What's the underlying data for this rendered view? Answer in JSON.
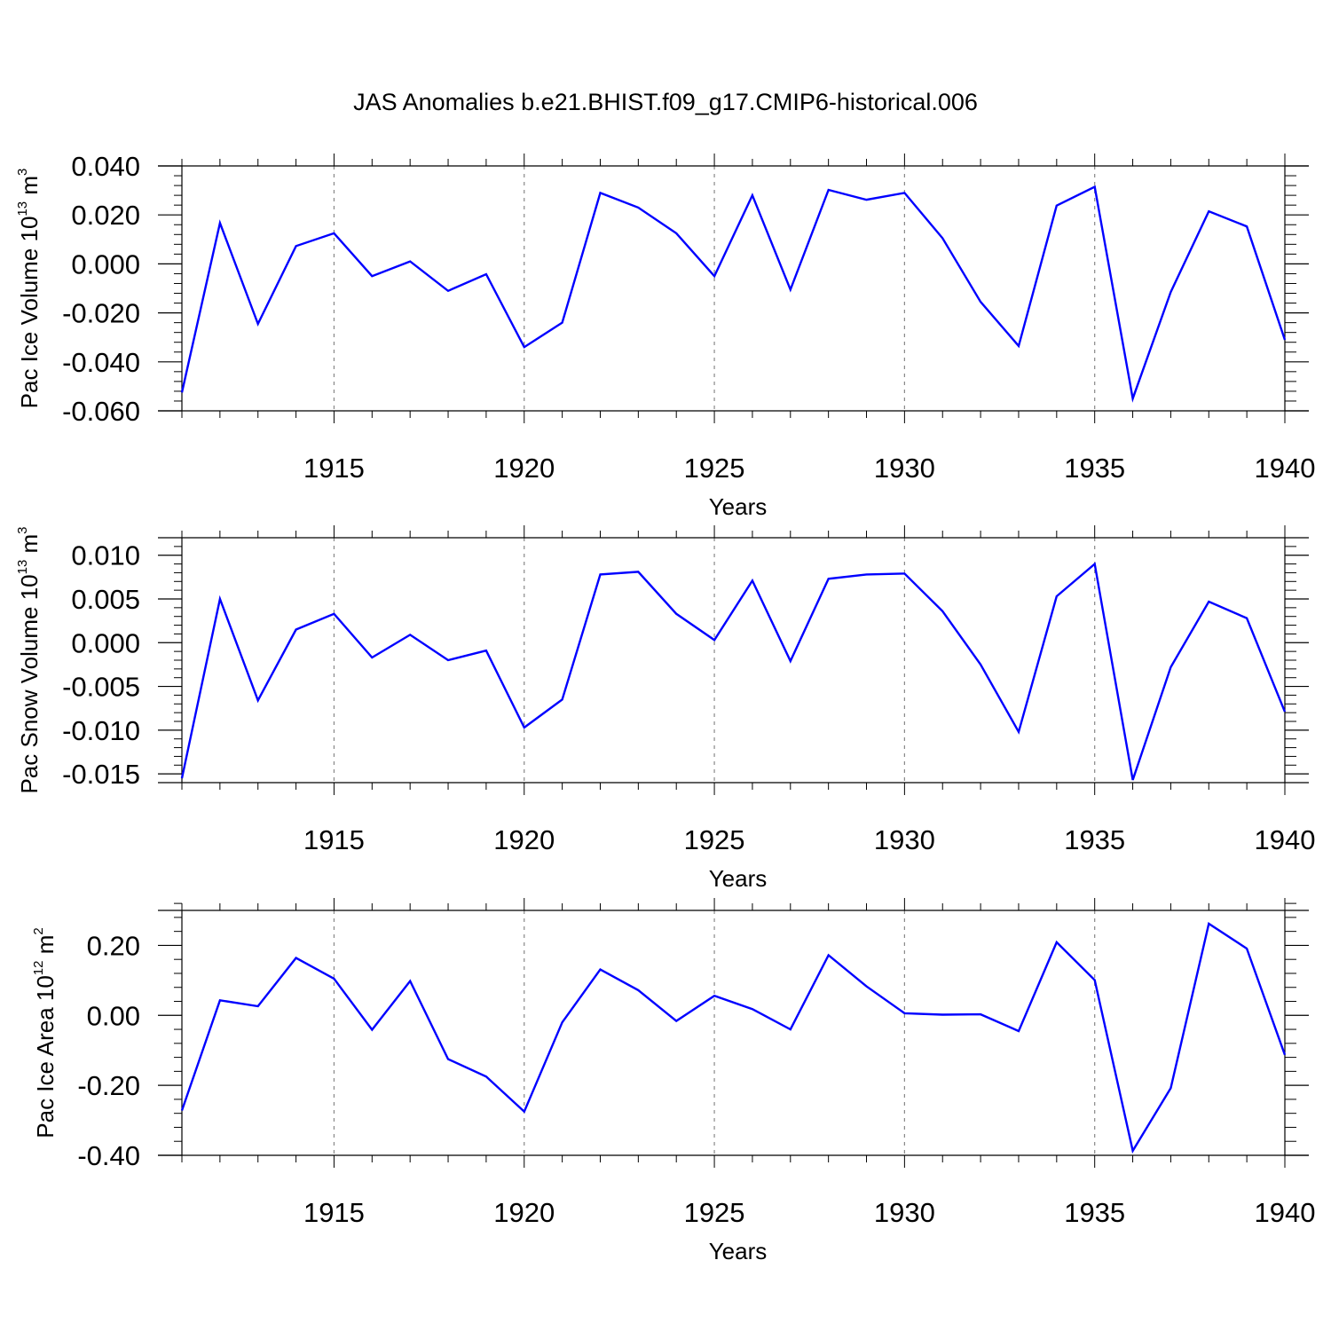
{
  "title": "JAS Anomalies b.e21.BHIST.f09_g17.CMIP6-historical.006",
  "colors": {
    "line": "#0000ff",
    "axis": "#000000",
    "grid": "#888888"
  },
  "chart_data": [
    {
      "type": "line",
      "ylabel": {
        "main": "Pac Ice Volume 10",
        "exp": "13",
        "unit": " m",
        "unit_exp": "3"
      },
      "xlabel": "Years",
      "xlim": [
        1911,
        1940
      ],
      "ylim": [
        -0.06,
        0.04
      ],
      "yticks": [
        0.04,
        0.02,
        0.0,
        -0.02,
        -0.04,
        -0.06
      ],
      "ytick_labels": [
        "0.040",
        "0.020",
        "0.000",
        "-0.020",
        "-0.040",
        "-0.060"
      ],
      "xticks": [
        1915,
        1920,
        1925,
        1930,
        1935,
        1940
      ],
      "xtick_labels": [
        "1915",
        "1920",
        "1925",
        "1930",
        "1935",
        "1940"
      ],
      "x": [
        1911,
        1912,
        1913,
        1914,
        1915,
        1916,
        1917,
        1918,
        1919,
        1920,
        1921,
        1922,
        1923,
        1924,
        1925,
        1926,
        1927,
        1928,
        1929,
        1930,
        1931,
        1932,
        1933,
        1934,
        1935,
        1936,
        1937,
        1938,
        1939,
        1940
      ],
      "y": [
        -0.0525,
        0.0167,
        -0.0245,
        0.0073,
        0.0125,
        -0.005,
        0.001,
        -0.011,
        -0.0042,
        -0.034,
        -0.024,
        0.029,
        0.023,
        0.0125,
        -0.005,
        0.028,
        -0.0105,
        0.0302,
        0.0262,
        0.029,
        0.0105,
        -0.0155,
        -0.0335,
        0.0238,
        0.0315,
        -0.055,
        -0.0115,
        0.0215,
        0.0153,
        -0.031
      ]
    },
    {
      "type": "line",
      "ylabel": {
        "main": "Pac Snow Volume 10",
        "exp": "13",
        "unit": " m",
        "unit_exp": "3"
      },
      "xlabel": "Years",
      "xlim": [
        1911,
        1940
      ],
      "ylim": [
        -0.016,
        0.012
      ],
      "yticks": [
        0.01,
        0.005,
        0.0,
        -0.005,
        -0.01,
        -0.015
      ],
      "ytick_labels": [
        "0.010",
        "0.005",
        "0.000",
        "-0.005",
        "-0.010",
        "-0.015"
      ],
      "xticks": [
        1915,
        1920,
        1925,
        1930,
        1935,
        1940
      ],
      "xtick_labels": [
        "1915",
        "1920",
        "1925",
        "1930",
        "1935",
        "1940"
      ],
      "x": [
        1911,
        1912,
        1913,
        1914,
        1915,
        1916,
        1917,
        1918,
        1919,
        1920,
        1921,
        1922,
        1923,
        1924,
        1925,
        1926,
        1927,
        1928,
        1929,
        1930,
        1931,
        1932,
        1933,
        1934,
        1935,
        1936,
        1937,
        1938,
        1939,
        1940
      ],
      "y": [
        -0.0155,
        0.005,
        -0.0066,
        0.0015,
        0.0033,
        -0.0017,
        0.0009,
        -0.002,
        -0.0009,
        -0.0097,
        -0.0065,
        0.0078,
        0.0081,
        0.0033,
        0.0003,
        0.0071,
        -0.0021,
        0.0073,
        0.0078,
        0.0079,
        0.0036,
        -0.0025,
        -0.0102,
        0.0053,
        0.009,
        -0.0157,
        -0.0028,
        0.0047,
        0.0028,
        -0.0079
      ]
    },
    {
      "type": "line",
      "ylabel": {
        "main": "Pac Ice Area 10",
        "exp": "12",
        "unit": " m",
        "unit_exp": "2"
      },
      "xlabel": "Years",
      "xlim": [
        1911,
        1940
      ],
      "ylim": [
        -0.4,
        0.3
      ],
      "yticks": [
        0.2,
        0.0,
        -0.2,
        -0.4
      ],
      "ytick_labels": [
        "0.20",
        "0.00",
        "-0.20",
        "-0.40"
      ],
      "xticks": [
        1915,
        1920,
        1925,
        1930,
        1935,
        1940
      ],
      "xtick_labels": [
        "1915",
        "1920",
        "1925",
        "1930",
        "1935",
        "1940"
      ],
      "x": [
        1911,
        1912,
        1913,
        1914,
        1915,
        1916,
        1917,
        1918,
        1919,
        1920,
        1921,
        1922,
        1923,
        1924,
        1925,
        1926,
        1927,
        1928,
        1929,
        1930,
        1931,
        1932,
        1933,
        1934,
        1935,
        1936,
        1937,
        1938,
        1939,
        1940
      ],
      "y": [
        -0.272,
        0.043,
        0.026,
        0.164,
        0.105,
        -0.041,
        0.098,
        -0.125,
        -0.175,
        -0.275,
        -0.02,
        0.131,
        0.072,
        -0.016,
        0.056,
        0.018,
        -0.04,
        0.172,
        0.083,
        0.006,
        0.002,
        0.003,
        -0.045,
        0.209,
        0.101,
        -0.387,
        -0.208,
        0.262,
        0.191,
        -0.113
      ]
    }
  ]
}
